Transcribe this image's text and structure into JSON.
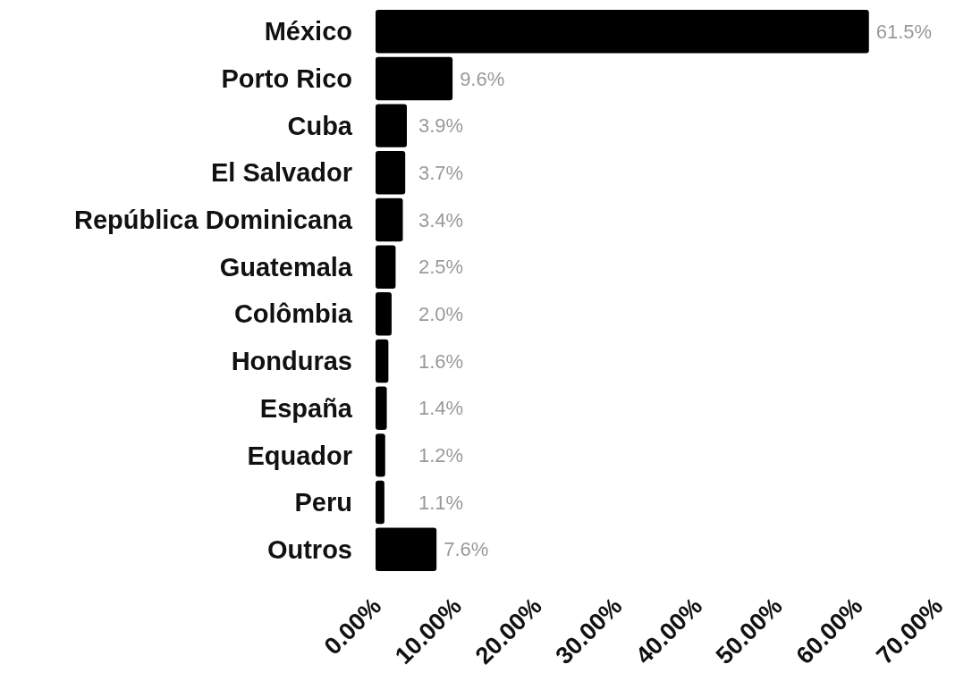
{
  "chart_data": {
    "type": "bar",
    "orientation": "horizontal",
    "categories": [
      "México",
      "Porto Rico",
      "Cuba",
      "El Salvador",
      "República Dominicana",
      "Guatemala",
      "Colômbia",
      "Honduras",
      "España",
      "Equador",
      "Peru",
      "Outros"
    ],
    "values": [
      61.5,
      9.6,
      3.9,
      3.7,
      3.4,
      2.5,
      2.0,
      1.6,
      1.4,
      1.2,
      1.1,
      7.6
    ],
    "value_labels": [
      "61.5%",
      "9.6%",
      "3.9%",
      "3.7%",
      "3.4%",
      "2.5%",
      "2.0%",
      "1.6%",
      "1.4%",
      "1.2%",
      "1.1%",
      "7.6%"
    ],
    "color": "#000000",
    "xlim": [
      0,
      70
    ],
    "xticks": [
      {
        "value": 0,
        "label": "0.00%"
      },
      {
        "value": 10,
        "label": "10.00%"
      },
      {
        "value": 20,
        "label": "20.00%"
      },
      {
        "value": 30,
        "label": "30.00%"
      },
      {
        "value": 40,
        "label": "40.00%"
      },
      {
        "value": 50,
        "label": "50.00%"
      },
      {
        "value": 60,
        "label": "60.00%"
      },
      {
        "value": 70,
        "label": "70.00%"
      }
    ],
    "grid": false
  }
}
